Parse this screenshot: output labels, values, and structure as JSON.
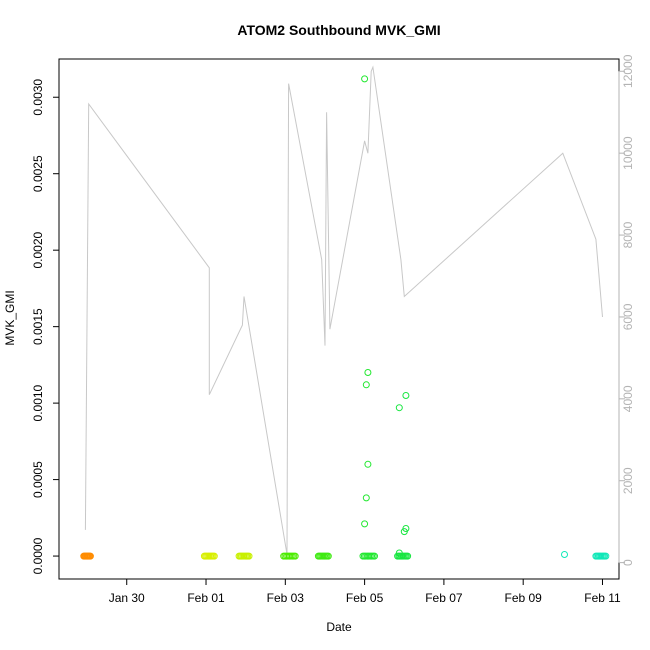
{
  "chart_data": {
    "type": "scatter",
    "title": "ATOM2 Southbound MVK_GMI",
    "xlabel": "Date",
    "ylabel": "MVK_GMI",
    "xlim": [
      "2019-01-28T07:00",
      "2019-02-11T10:00"
    ],
    "ylim": [
      -0.00015,
      0.00325
    ],
    "y_ticks": [
      0,
      0.0005,
      0.001,
      0.0015,
      0.002,
      0.0025,
      0.003
    ],
    "y_tick_labels": [
      "0.0000",
      "0.0005",
      "0.0010",
      "0.0015",
      "0.0020",
      "0.0025",
      "0.0030"
    ],
    "x_ticks": [
      "2019-01-30",
      "2019-02-01",
      "2019-02-03",
      "2019-02-05",
      "2019-02-07",
      "2019-02-09",
      "2019-02-11"
    ],
    "x_tick_labels": [
      "Jan 30",
      "Feb 01",
      "Feb 03",
      "Feb 05",
      "Feb 07",
      "Feb 09",
      "Feb 11"
    ],
    "y2_ticks": [
      0,
      2000,
      4000,
      6000,
      8000,
      10000,
      12000
    ],
    "y2_tick_labels": [
      "0",
      "2000",
      "4000",
      "6000",
      "8000",
      "10000",
      "12000"
    ],
    "y2lim": [
      -400,
      12300
    ],
    "grid": false,
    "marker": "open-circle",
    "altitude_line_color": "#c8c8c8",
    "clusters": [
      {
        "start": "2019-01-28T22:00",
        "end": "2019-01-29T02:00",
        "y": 0.0,
        "color": "#ff8c00"
      },
      {
        "start": "2019-01-31T23:00",
        "end": "2019-02-01T05:00",
        "y": 0.0,
        "color": "#d8ef00"
      },
      {
        "start": "2019-02-01T20:00",
        "end": "2019-02-02T02:00",
        "y": 0.0,
        "color": "#c8f000"
      },
      {
        "start": "2019-02-02T23:00",
        "end": "2019-02-03T06:00",
        "y": 0.0,
        "color": "#4cec00"
      },
      {
        "start": "2019-02-03T20:00",
        "end": "2019-02-04T02:00",
        "y": 0.0,
        "color": "#3eea10"
      },
      {
        "start": "2019-02-04T23:00",
        "end": "2019-02-05T06:00",
        "y": 0.0,
        "color": "#22e830"
      },
      {
        "start": "2019-02-05T20:00",
        "end": "2019-02-06T02:00",
        "y": 0.0,
        "color": "#18e640"
      },
      {
        "start": "2019-02-10T20:00",
        "end": "2019-02-11T02:00",
        "y": 0.0,
        "color": "#10e8b8"
      }
    ],
    "points": [
      {
        "x": "2019-02-05T00:00",
        "y": 0.00312,
        "color": "#22e830"
      },
      {
        "x": "2019-02-05T02:00",
        "y": 0.0012,
        "color": "#22e830"
      },
      {
        "x": "2019-02-05T01:00",
        "y": 0.00112,
        "color": "#22e830"
      },
      {
        "x": "2019-02-05T02:00",
        "y": 0.0006,
        "color": "#22e830"
      },
      {
        "x": "2019-02-05T01:00",
        "y": 0.00038,
        "color": "#22e830"
      },
      {
        "x": "2019-02-05T00:00",
        "y": 0.00021,
        "color": "#22e830"
      },
      {
        "x": "2019-02-05T21:00",
        "y": 0.00097,
        "color": "#18e640"
      },
      {
        "x": "2019-02-06T01:00",
        "y": 0.00105,
        "color": "#18e640"
      },
      {
        "x": "2019-02-06T01:00",
        "y": 0.00018,
        "color": "#18e640"
      },
      {
        "x": "2019-02-06T00:00",
        "y": 0.00016,
        "color": "#18e640"
      },
      {
        "x": "2019-02-05T21:00",
        "y": 2e-05,
        "color": "#18e640"
      },
      {
        "x": "2019-02-10T01:00",
        "y": 1e-05,
        "color": "#10e8b8"
      }
    ],
    "altitude_series": [
      [
        "2019-01-28T23:00",
        800
      ],
      [
        "2019-01-29T01:00",
        11200
      ],
      [
        "2019-02-01T02:00",
        7200
      ],
      [
        "2019-02-01T02:00",
        4100
      ],
      [
        "2019-02-01T22:00",
        5800
      ],
      [
        "2019-02-01T23:00",
        6500
      ],
      [
        "2019-02-03T01:00",
        200
      ],
      [
        "2019-02-03T02:00",
        11700
      ],
      [
        "2019-02-03T22:00",
        7400
      ],
      [
        "2019-02-04T00:00",
        5300
      ],
      [
        "2019-02-04T01:00",
        11000
      ],
      [
        "2019-02-04T03:00",
        5700
      ],
      [
        "2019-02-05T00:00",
        10300
      ],
      [
        "2019-02-05T02:00",
        10000
      ],
      [
        "2019-02-05T04:00",
        12000
      ],
      [
        "2019-02-05T05:00",
        12100
      ],
      [
        "2019-02-05T22:00",
        7400
      ],
      [
        "2019-02-06T00:00",
        6500
      ],
      [
        "2019-02-10T00:00",
        10000
      ],
      [
        "2019-02-10T20:00",
        7900
      ],
      [
        "2019-02-11T00:00",
        6000
      ]
    ]
  }
}
